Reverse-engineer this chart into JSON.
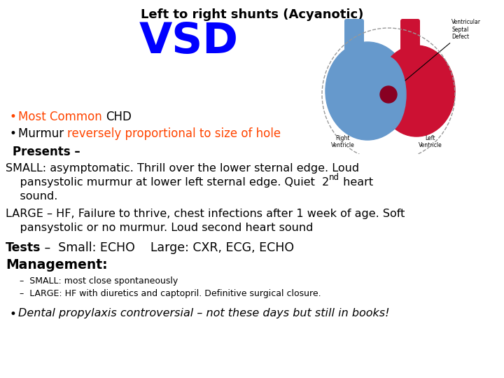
{
  "title": "Left to right shunts (Acyanotic)",
  "vsd_title": "VSD",
  "vsd_color": "#0000FF",
  "background_color": "#FFFFFF",
  "bullet1_prefix": "Most Common ",
  "bullet1_prefix_color": "#FF4500",
  "bullet1_suffix": "CHD",
  "bullet1_suffix_color": "#000000",
  "bullet2_prefix": "Murmur ",
  "bullet2_prefix_color": "#000000",
  "bullet2_highlight": "reversely proportional to size of hole",
  "bullet2_highlight_color": "#FF4500",
  "presents_text": "Presents –",
  "small_line1": "SMALL: asymptomatic. Thrill over the lower sternal edge. Loud",
  "small_line2": "    pansystolic murmur at lower left sternal edge. Quiet  2",
  "small_line2_super": "nd",
  "small_line2_end": " heart",
  "small_line3": "    sound.",
  "large_line1": "LARGE – HF, Failure to thrive, chest infections after 1 week of age. Soft",
  "large_line2": "    pansystolic or no murmur. Loud second heart sound",
  "tests_bold": "Tests",
  "tests_rest": " –  Small: ECHO    Large: CXR, ECG, ECHO",
  "mgmt_bold": "Management:",
  "mgmt1": "–  SMALL: most close spontaneously",
  "mgmt2": "–  LARGE: HF with diuretics and captopril. Definitive surgical closure.",
  "dental_text": "Dental propylaxis controversial – not these days but still in books!",
  "dental_color": "#000000",
  "fig_width": 7.2,
  "fig_height": 5.4,
  "dpi": 100
}
